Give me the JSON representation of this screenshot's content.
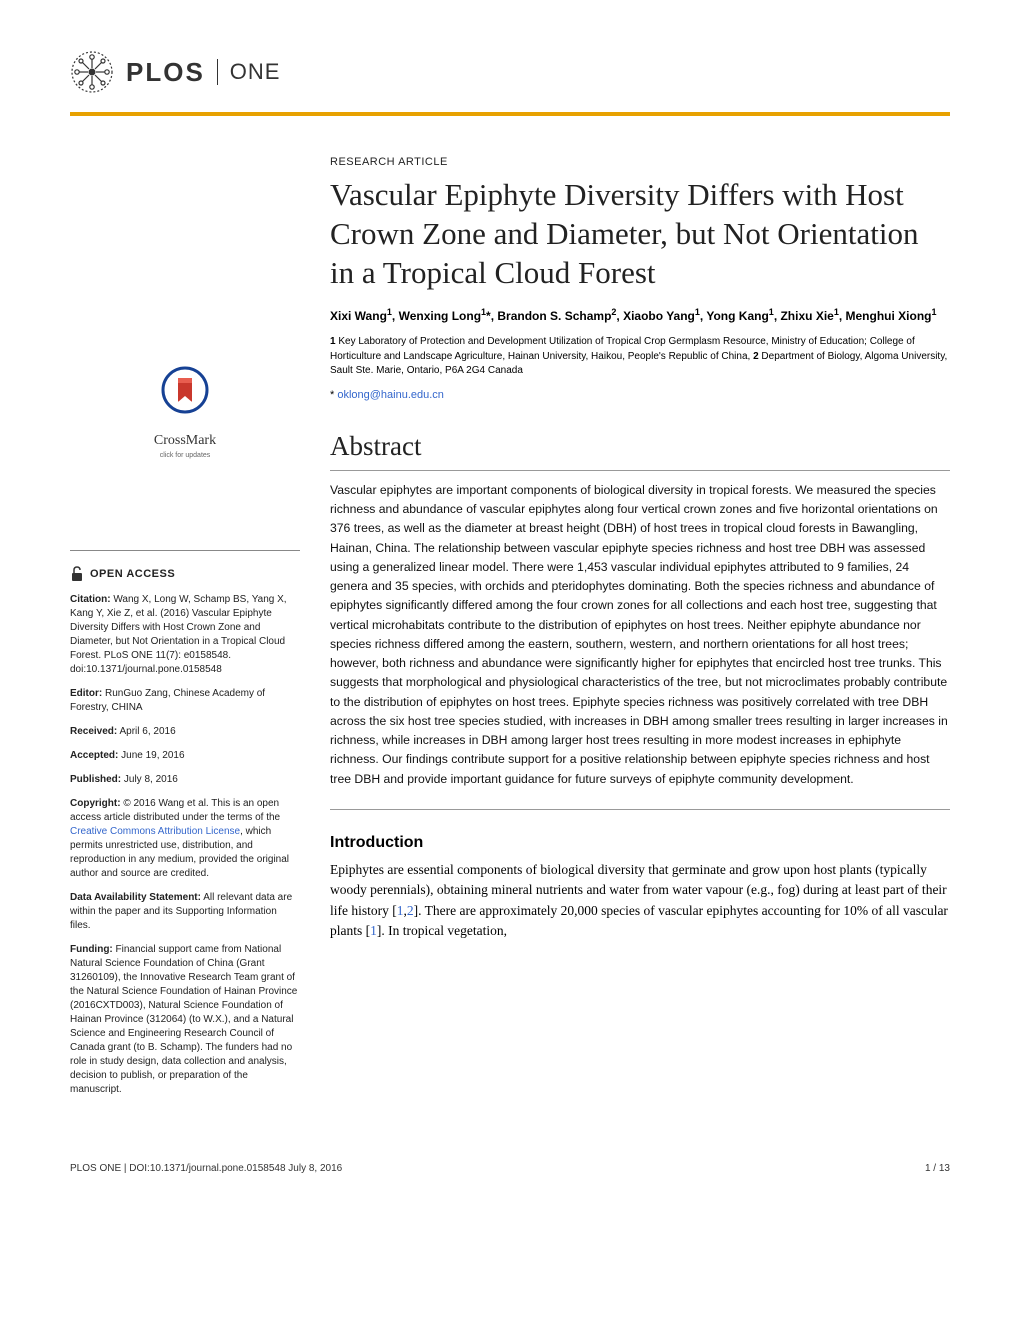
{
  "journal": {
    "logo_text": "PLOS",
    "logo_sub": "ONE"
  },
  "article_type": "RESEARCH ARTICLE",
  "title": "Vascular Epiphyte Diversity Differs with Host Crown Zone and Diameter, but Not Orientation in a Tropical Cloud Forest",
  "authors_html": "Xixi Wang<sup>1</sup>, Wenxing Long<sup>1</sup>*, Brandon S. Schamp<sup>2</sup>, Xiaobo Yang<sup>1</sup>, Yong Kang<sup>1</sup>, Zhixu Xie<sup>1</sup>, Menghui Xiong<sup>1</sup>",
  "affiliations": [
    {
      "n": "1",
      "text": "Key Laboratory of Protection and Development Utilization of Tropical Crop Germplasm Resource, Ministry of Education; College of Horticulture and Landscape Agriculture, Hainan University, Haikou, People's Republic of China,"
    },
    {
      "n": "2",
      "text": "Department of Biology, Algoma University, Sault Ste. Marie, Ontario, P6A 2G4 Canada"
    }
  ],
  "corr_mark": "*",
  "corr_email": "oklong@hainu.edu.cn",
  "crossmark": {
    "label": "CrossMark",
    "sub": "click for updates"
  },
  "open_access": "OPEN ACCESS",
  "sidebar": {
    "citation_label": "Citation:",
    "citation": " Wang X, Long W, Schamp BS, Yang X, Kang Y, Xie Z, et al. (2016) Vascular Epiphyte Diversity Differs with Host Crown Zone and Diameter, but Not Orientation in a Tropical Cloud Forest. PLoS ONE 11(7): e0158548. doi:10.1371/journal.pone.0158548",
    "editor_label": "Editor:",
    "editor": " RunGuo Zang, Chinese Academy of Forestry, CHINA",
    "received_label": "Received:",
    "received": " April 6, 2016",
    "accepted_label": "Accepted:",
    "accepted": " June 19, 2016",
    "published_label": "Published:",
    "published": " July 8, 2016",
    "copyright_label": "Copyright:",
    "copyright_pre": " © 2016 Wang et al. This is an open access article distributed under the terms of the ",
    "copyright_link": "Creative Commons Attribution License",
    "copyright_post": ", which permits unrestricted use, distribution, and reproduction in any medium, provided the original author and source are credited.",
    "data_label": "Data Availability Statement:",
    "data": " All relevant data are within the paper and its Supporting Information files.",
    "funding_label": "Funding:",
    "funding": " Financial support came from National Natural Science Foundation of China (Grant 31260109), the Innovative Research Team grant of the Natural Science Foundation of Hainan Province (2016CXTD003), Natural Science Foundation of Hainan Province (312064) (to W.X.), and a Natural Science and Engineering Research Council of Canada grant (to B. Schamp). The funders had no role in study design, data collection and analysis, decision to publish, or preparation of the manuscript."
  },
  "abstract_heading": "Abstract",
  "abstract": "Vascular epiphytes are important components of biological diversity in tropical forests. We measured the species richness and abundance of vascular epiphytes along four vertical crown zones and five horizontal orientations on 376 trees, as well as the diameter at breast height (DBH) of host trees in tropical cloud forests in Bawangling, Hainan, China. The relationship between vascular epiphyte species richness and host tree DBH was assessed using a generalized linear model. There were 1,453 vascular individual epiphytes attributed to 9 families, 24 genera and 35 species, with orchids and pteridophytes dominating. Both the species richness and abundance of epiphytes significantly differed among the four crown zones for all collections and each host tree, suggesting that vertical microhabitats contribute to the distribution of epiphytes on host trees. Neither epiphyte abundance nor species richness differed among the eastern, southern, western, and northern orientations for all host trees; however, both richness and abundance were significantly higher for epiphytes that encircled host tree trunks. This suggests that morphological and physiological characteristics of the tree, but not microclimates probably contribute to the distribution of epiphytes on host trees. Epiphyte species richness was positively correlated with tree DBH across the six host tree species studied, with increases in DBH among smaller trees resulting in larger increases in richness, while increases in DBH among larger host trees resulting in more modest increases in ephiphyte richness. Our findings contribute support for a positive relationship between epiphyte species richness and host tree DBH and provide important guidance for future surveys of epiphyte community development.",
  "intro_heading": "Introduction",
  "intro_body_pre": "Epiphytes are essential components of biological diversity that germinate and grow upon host plants (typically woody perennials), obtaining mineral nutrients and water from water vapour (e.g., fog) during at least part of their life history [",
  "intro_ref1": "1",
  "intro_comma": ",",
  "intro_ref2": "2",
  "intro_body_mid": "]. There are approximately 20,000 species of vascular epiphytes accounting for 10% of all vascular plants [",
  "intro_ref3": "1",
  "intro_body_post": "]. In tropical vegetation,",
  "footer": {
    "left": "PLOS ONE | DOI:10.1371/journal.pone.0158548    July 8, 2016",
    "right": "1 / 13"
  },
  "colors": {
    "accent": "#e7a100",
    "link": "#3366cc"
  }
}
